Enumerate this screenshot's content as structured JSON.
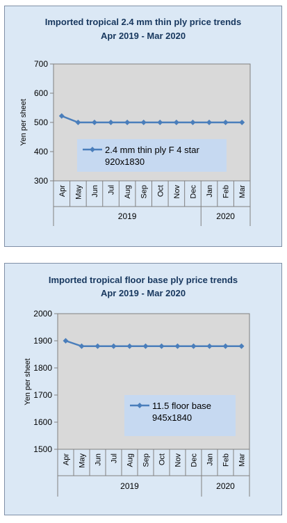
{
  "chart_data": [
    {
      "type": "line",
      "title": [
        "Imported tropical 2.4 mm thin ply price trends",
        "Apr 2019 - Mar 2020"
      ],
      "ylabel": "Yen per sheet",
      "ylim": [
        300,
        700
      ],
      "yticks": [
        300,
        400,
        500,
        600,
        700
      ],
      "categories": [
        "Apr",
        "May",
        "Jun",
        "Jul",
        "Aug",
        "Sep",
        "Oct",
        "Nov",
        "Dec",
        "Jan",
        "Feb",
        "Mar"
      ],
      "year_groups": [
        {
          "label": "2019",
          "count": 9
        },
        {
          "label": "2020",
          "count": 3
        }
      ],
      "series": [
        {
          "name": [
            "2.4 mm thin ply F 4 star",
            "920x1830"
          ],
          "color": "#4a7ebb",
          "values": [
            522,
            500,
            500,
            500,
            500,
            500,
            500,
            500,
            500,
            500,
            500,
            500
          ]
        }
      ],
      "grid": false,
      "legend": "center"
    },
    {
      "type": "line",
      "title": [
        "Imported tropical floor base ply price trends",
        "Apr 2019 - Mar 2020"
      ],
      "ylabel": "Yen per sheet",
      "ylim": [
        1500,
        2000
      ],
      "yticks": [
        1500,
        1600,
        1700,
        1800,
        1900,
        2000
      ],
      "categories": [
        "Apr",
        "May",
        "Jun",
        "Jul",
        "Aug",
        "Sep",
        "Oct",
        "Nov",
        "Dec",
        "Jan",
        "Feb",
        "Mar"
      ],
      "year_groups": [
        {
          "label": "2019",
          "count": 9
        },
        {
          "label": "2020",
          "count": 3
        }
      ],
      "series": [
        {
          "name": [
            "11.5 floor base",
            "945x1840"
          ],
          "color": "#4a7ebb",
          "values": [
            1900,
            1880,
            1880,
            1880,
            1880,
            1880,
            1880,
            1880,
            1880,
            1880,
            1880,
            1880
          ]
        }
      ],
      "grid": false,
      "legend": "center-right"
    }
  ]
}
